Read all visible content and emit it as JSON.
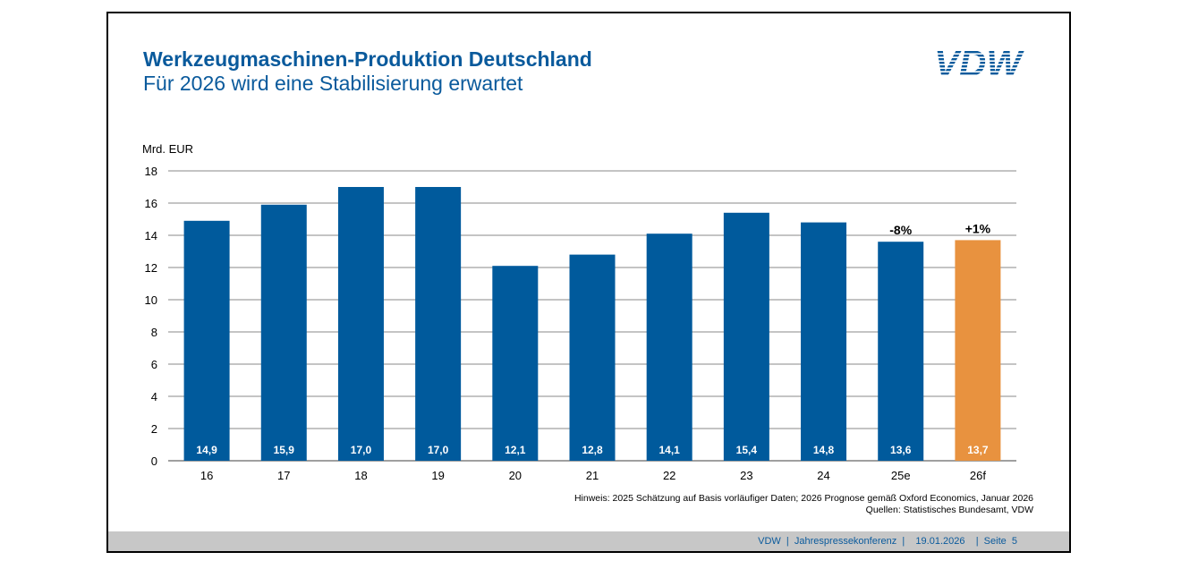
{
  "header": {
    "title": "Werkzeugmaschinen-Produktion Deutschland",
    "subtitle": "Für 2026 wird eine Stabilisierung erwartet",
    "logo_text": "VDW"
  },
  "colors": {
    "primary_blue": "#005a9c",
    "forecast_orange": "#e8923f",
    "title_blue": "#0a5a9c"
  },
  "chart_data": {
    "type": "bar",
    "ylabel": "Mrd. EUR",
    "ylim": [
      0,
      18
    ],
    "yticks": [
      "0",
      "2",
      "4",
      "6",
      "8",
      "10",
      "12",
      "14",
      "16",
      "18"
    ],
    "grid": true,
    "categories": [
      "16",
      "17",
      "18",
      "19",
      "20",
      "21",
      "22",
      "23",
      "24",
      "25e",
      "26f"
    ],
    "values": [
      14.9,
      15.9,
      17.0,
      17.0,
      12.1,
      12.8,
      14.1,
      15.4,
      14.8,
      13.6,
      13.7
    ],
    "value_labels": [
      "14,9",
      "15,9",
      "17,0",
      "17,0",
      "12,1",
      "12,8",
      "14,1",
      "15,4",
      "14,8",
      "13,6",
      "13,7"
    ],
    "bar_colors": [
      "#005a9c",
      "#005a9c",
      "#005a9c",
      "#005a9c",
      "#005a9c",
      "#005a9c",
      "#005a9c",
      "#005a9c",
      "#005a9c",
      "#005a9c",
      "#e8923f"
    ],
    "annotations": [
      {
        "category": "25e",
        "text": "-8%"
      },
      {
        "category": "26f",
        "text": "+1%"
      }
    ]
  },
  "notes": {
    "line1": "Hinweis: 2025 Schätzung auf Basis vorläufiger Daten; 2026 Prognose gemäß Oxford Economics, Januar 2026",
    "line2": "Quellen: Statistisches Bundesamt, VDW"
  },
  "footer": {
    "text": "VDW  |  Jahrespressekonferenz  |    19.01.2026    |  Seite  5"
  }
}
